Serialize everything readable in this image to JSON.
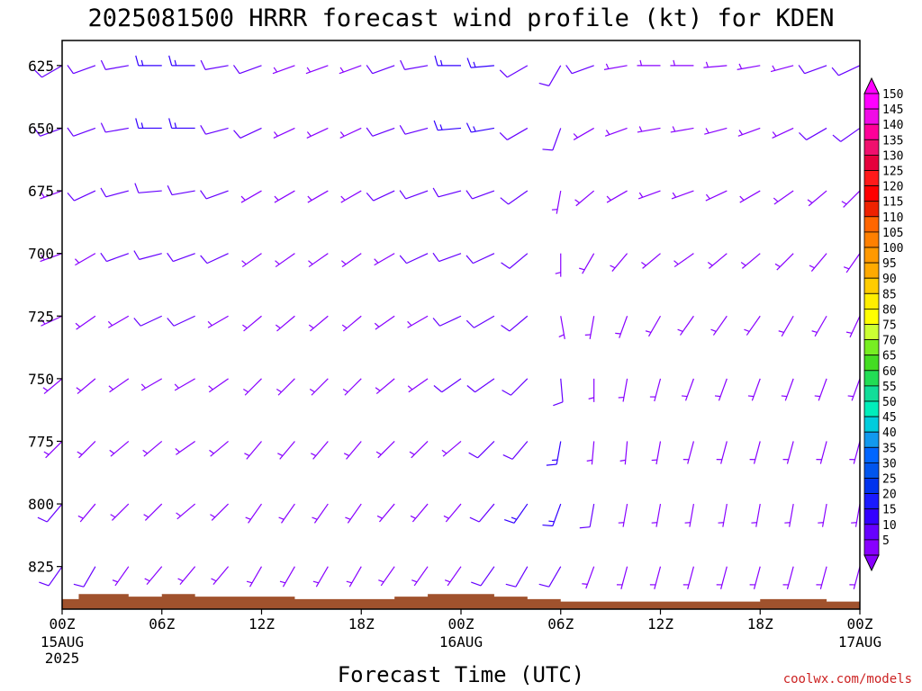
{
  "chart_data": {
    "type": "wind-barb-profile",
    "title": "2025081500 HRRR forecast wind profile (kt) for KDEN",
    "xlabel": "Forecast Time (UTC)",
    "credit": "coolwx.com/models",
    "y_axis": {
      "reversed": true,
      "range": [
        615,
        842
      ],
      "ticks": [
        "625",
        "650",
        "675",
        "700",
        "725",
        "750",
        "775",
        "800",
        "825"
      ]
    },
    "x_axis": {
      "range_hours": [
        0,
        48
      ],
      "ticks": [
        {
          "hour": 0,
          "label": "00Z",
          "sub": [
            "15AUG",
            "2025"
          ]
        },
        {
          "hour": 6,
          "label": "06Z",
          "sub": []
        },
        {
          "hour": 12,
          "label": "12Z",
          "sub": []
        },
        {
          "hour": 18,
          "label": "18Z",
          "sub": []
        },
        {
          "hour": 24,
          "label": "00Z",
          "sub": [
            "16AUG"
          ]
        },
        {
          "hour": 30,
          "label": "06Z",
          "sub": []
        },
        {
          "hour": 36,
          "label": "12Z",
          "sub": []
        },
        {
          "hour": 42,
          "label": "18Z",
          "sub": []
        },
        {
          "hour": 48,
          "label": "00Z",
          "sub": [
            "17AUG"
          ]
        }
      ]
    },
    "colorbar": {
      "labels": [
        "150",
        "145",
        "140",
        "135",
        "130",
        "125",
        "120",
        "115",
        "110",
        "105",
        "100",
        "95",
        "90",
        "85",
        "80",
        "75",
        "70",
        "65",
        "60",
        "55",
        "50",
        "45",
        "40",
        "35",
        "30",
        "25",
        "20",
        "15",
        "10",
        "5"
      ],
      "colors": [
        "#ff00ff",
        "#f00ce6",
        "#ff0099",
        "#f0106e",
        "#e6003c",
        "#ff1a1a",
        "#ff0000",
        "#ee2200",
        "#ff6600",
        "#ff8000",
        "#ff9900",
        "#ffaa00",
        "#ffcc00",
        "#ffee00",
        "#ffff00",
        "#ccff33",
        "#77ee22",
        "#44dd22",
        "#22dd55",
        "#11dd99",
        "#00eebb",
        "#00ccdd",
        "#1199ee",
        "#0066ff",
        "#0055ee",
        "#0033ee",
        "#1a1aff",
        "#3300ff",
        "#6600ff",
        "#8800ff"
      ]
    },
    "barbs": {
      "hours": [
        0,
        2,
        4,
        6,
        8,
        10,
        12,
        14,
        16,
        18,
        20,
        22,
        24,
        26,
        28,
        30,
        32,
        34,
        36,
        38,
        40,
        42,
        44,
        46,
        48
      ],
      "levels": [
        625,
        650,
        675,
        700,
        725,
        750,
        775,
        800,
        825
      ],
      "direction_deg": [
        [
          240,
          250,
          250,
          250,
          245,
          230,
          225,
          220,
          215
        ],
        [
          250,
          250,
          245,
          240,
          235,
          230,
          225,
          220,
          210
        ],
        [
          260,
          260,
          255,
          250,
          240,
          235,
          230,
          225,
          215
        ],
        [
          270,
          270,
          265,
          255,
          245,
          240,
          230,
          225,
          220
        ],
        [
          270,
          270,
          260,
          250,
          245,
          240,
          235,
          230,
          220
        ],
        [
          260,
          255,
          250,
          245,
          240,
          235,
          230,
          225,
          220
        ],
        [
          250,
          245,
          240,
          235,
          230,
          225,
          220,
          215,
          210
        ],
        [
          250,
          245,
          240,
          235,
          230,
          225,
          220,
          215,
          210
        ],
        [
          250,
          245,
          240,
          235,
          230,
          225,
          220,
          215,
          210
        ],
        [
          250,
          245,
          240,
          235,
          230,
          225,
          220,
          215,
          210
        ],
        [
          250,
          250,
          245,
          240,
          235,
          230,
          225,
          220,
          215
        ],
        [
          260,
          255,
          250,
          245,
          240,
          235,
          225,
          220,
          215
        ],
        [
          270,
          265,
          255,
          250,
          245,
          235,
          230,
          220,
          215
        ],
        [
          265,
          260,
          250,
          245,
          240,
          235,
          225,
          220,
          215
        ],
        [
          240,
          240,
          235,
          230,
          230,
          225,
          220,
          215,
          210
        ],
        [
          210,
          200,
          190,
          180,
          170,
          175,
          190,
          200,
          210
        ],
        [
          250,
          240,
          230,
          210,
          190,
          180,
          185,
          190,
          200
        ],
        [
          260,
          250,
          240,
          220,
          200,
          190,
          185,
          190,
          195
        ],
        [
          270,
          260,
          250,
          230,
          210,
          195,
          190,
          190,
          195
        ],
        [
          270,
          260,
          250,
          235,
          215,
          200,
          195,
          190,
          195
        ],
        [
          265,
          255,
          245,
          230,
          215,
          200,
          195,
          190,
          195
        ],
        [
          260,
          250,
          240,
          230,
          215,
          200,
          195,
          190,
          195
        ],
        [
          255,
          245,
          235,
          225,
          210,
          200,
          195,
          190,
          195
        ],
        [
          250,
          240,
          230,
          220,
          210,
          200,
          195,
          190,
          195
        ],
        [
          245,
          235,
          225,
          215,
          205,
          200,
          195,
          190,
          195
        ]
      ],
      "speed_kt": [
        [
          8,
          8,
          7,
          6,
          5,
          5,
          5,
          10,
          12
        ],
        [
          9,
          9,
          8,
          7,
          6,
          5,
          5,
          6,
          8
        ],
        [
          12,
          11,
          10,
          8,
          7,
          6,
          6,
          5,
          6
        ],
        [
          16,
          14,
          12,
          10,
          8,
          7,
          6,
          6,
          5
        ],
        [
          14,
          13,
          11,
          9,
          8,
          7,
          6,
          5,
          5
        ],
        [
          10,
          9,
          9,
          8,
          7,
          6,
          6,
          5,
          5
        ],
        [
          8,
          8,
          7,
          7,
          6,
          6,
          5,
          5,
          5
        ],
        [
          7,
          7,
          7,
          6,
          6,
          6,
          5,
          5,
          5
        ],
        [
          7,
          7,
          7,
          6,
          6,
          6,
          6,
          5,
          5
        ],
        [
          7,
          7,
          7,
          6,
          6,
          6,
          6,
          5,
          5
        ],
        [
          8,
          8,
          8,
          7,
          7,
          6,
          6,
          6,
          5
        ],
        [
          10,
          10,
          9,
          8,
          7,
          7,
          6,
          6,
          5
        ],
        [
          14,
          13,
          12,
          10,
          9,
          8,
          7,
          6,
          5
        ],
        [
          16,
          14,
          12,
          10,
          9,
          8,
          8,
          9,
          8
        ],
        [
          12,
          11,
          10,
          9,
          8,
          8,
          10,
          14,
          12
        ],
        [
          9,
          8,
          7,
          6,
          6,
          8,
          14,
          16,
          12
        ],
        [
          8,
          7,
          6,
          5,
          5,
          6,
          7,
          8,
          7
        ],
        [
          7,
          7,
          6,
          5,
          5,
          5,
          6,
          7,
          6
        ],
        [
          7,
          7,
          6,
          5,
          5,
          5,
          6,
          6,
          6
        ],
        [
          7,
          7,
          6,
          5,
          5,
          5,
          5,
          6,
          6
        ],
        [
          7,
          7,
          6,
          5,
          5,
          5,
          5,
          6,
          6
        ],
        [
          7,
          7,
          6,
          5,
          5,
          5,
          5,
          6,
          6
        ],
        [
          7,
          7,
          6,
          6,
          5,
          5,
          5,
          6,
          6
        ],
        [
          8,
          8,
          7,
          6,
          5,
          5,
          5,
          6,
          6
        ],
        [
          9,
          8,
          7,
          6,
          5,
          5,
          5,
          6,
          6
        ]
      ]
    },
    "terrain": {
      "color": "#a0522d",
      "hours": [
        0,
        1,
        2,
        4,
        6,
        8,
        10,
        12,
        14,
        16,
        18,
        20,
        22,
        24,
        26,
        28,
        30,
        32,
        34,
        36,
        38,
        40,
        42,
        44,
        46,
        48
      ],
      "pressure": [
        838,
        836,
        836,
        837,
        836,
        837,
        837,
        837,
        838,
        838,
        838,
        837,
        836,
        836,
        837,
        838,
        839,
        839,
        839,
        839,
        839,
        839,
        838,
        838,
        839,
        839
      ]
    }
  }
}
